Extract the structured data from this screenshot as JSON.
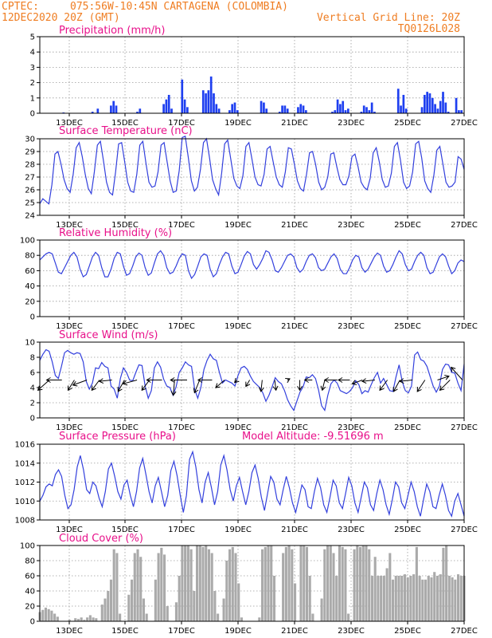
{
  "header": {
    "source": "CPTEC:",
    "location": "075:56W-10:45N  CARTAGENA (COLOMBIA)",
    "run": "12DEC2020 20Z (GMT)",
    "grid_note": "Vertical Grid Line: 20Z",
    "model_code": "TQ0126L028"
  },
  "colors": {
    "header": "#ef7d22",
    "title": "#e8108a",
    "line": "#3340dd",
    "precip": "#1e3ff0",
    "cloud": "#aaaaaa"
  },
  "x_axis": {
    "start": "2020-12-12 20Z",
    "end": "2020-12-26 20Z",
    "step_hours": 3,
    "tick_labels": [
      "13DEC",
      "15DEC",
      "17DEC",
      "19DEC",
      "21DEC",
      "23DEC",
      "25DEC",
      "27DEC"
    ]
  },
  "chart_data": [
    {
      "type": "bar",
      "title": "Precipitation (mm/h)",
      "ylim": [
        0,
        5
      ],
      "yticks": [
        "0",
        "1",
        "2",
        "3",
        "4",
        "5"
      ],
      "grid": true,
      "values": [
        0,
        0,
        0,
        0,
        0,
        0,
        0,
        0,
        0,
        0.05,
        0,
        0,
        0,
        0,
        0,
        0,
        0,
        0,
        0,
        0,
        0.1,
        0,
        0.3,
        0,
        0,
        0,
        0,
        0.5,
        0.8,
        0.5,
        0,
        0,
        0,
        0,
        0,
        0,
        0,
        0.1,
        0.3,
        0,
        0,
        0,
        0,
        0,
        0,
        0,
        0,
        0.6,
        0.9,
        1.2,
        0.3,
        0,
        0,
        0,
        2.2,
        0.9,
        0.4,
        0,
        0,
        0,
        0,
        0,
        1.5,
        1.3,
        1.5,
        2.4,
        1.3,
        0.6,
        0.3,
        0,
        0,
        0,
        0.2,
        0.6,
        0.7,
        0.2,
        0,
        0,
        0,
        0,
        0,
        0,
        0,
        0,
        0.8,
        0.7,
        0.3,
        0,
        0,
        0,
        0,
        0.1,
        0.5,
        0.5,
        0.3,
        0,
        0,
        0,
        0.4,
        0.6,
        0.5,
        0.2,
        0,
        0,
        0,
        0,
        0,
        0,
        0,
        0,
        0,
        0.1,
        0.2,
        0.9,
        0.6,
        0.8,
        0.2,
        0.3,
        0,
        0,
        0,
        0,
        0.1,
        0.5,
        0.4,
        0.2,
        0.7,
        0.1,
        0,
        0,
        0,
        0,
        0,
        0,
        0,
        0,
        1.6,
        0.5,
        1.2,
        0.3,
        0,
        0,
        0,
        0,
        0,
        0.4,
        1.2,
        1.4,
        1.3,
        1.0,
        0.6,
        0.3,
        0.8,
        1.4,
        0.7,
        0.1,
        0,
        0,
        1.0,
        0.2,
        0.2,
        0
      ]
    },
    {
      "type": "line",
      "title": "Surface Temperature (nC)",
      "ylim": [
        24,
        30
      ],
      "yticks": [
        "24",
        "25",
        "26",
        "27",
        "28",
        "29",
        "30"
      ],
      "grid": true,
      "series": [
        {
          "values": [
            24.9,
            25.3,
            25.1,
            24.9,
            26.4,
            28.8,
            29.0,
            28.0,
            26.8,
            26.1,
            25.8,
            27.2,
            29.3,
            29.7,
            28.6,
            27.2,
            26.1,
            25.7,
            27.4,
            29.5,
            29.8,
            28.3,
            26.6,
            25.8,
            25.6,
            27.4,
            29.6,
            29.7,
            28.2,
            26.6,
            25.9,
            25.8,
            27.2,
            29.5,
            29.8,
            28.1,
            26.6,
            26.2,
            26.3,
            27.4,
            29.5,
            29.7,
            28.2,
            26.7,
            25.8,
            25.9,
            27.5,
            30.1,
            30.2,
            28.5,
            26.7,
            25.9,
            26.2,
            27.6,
            29.7,
            30.0,
            28.5,
            26.8,
            26.1,
            25.6,
            27.3,
            29.6,
            29.9,
            28.4,
            26.9,
            26.3,
            26.1,
            27.1,
            29.4,
            29.7,
            28.4,
            27.0,
            26.4,
            26.3,
            27.2,
            29.2,
            29.4,
            28.2,
            27.0,
            26.4,
            26.2,
            27.4,
            29.3,
            29.2,
            28.0,
            26.7,
            26.1,
            25.9,
            27.2,
            28.9,
            29.0,
            28.0,
            26.6,
            26.0,
            26.2,
            27.0,
            28.8,
            28.9,
            27.8,
            26.8,
            26.4,
            26.4,
            27.1,
            28.6,
            28.8,
            27.8,
            26.6,
            26.2,
            26.0,
            26.9,
            28.9,
            29.3,
            28.2,
            26.8,
            26.2,
            26.3,
            27.3,
            29.4,
            29.7,
            28.3,
            26.6,
            26.1,
            26.3,
            27.4,
            29.6,
            29.8,
            28.5,
            26.7,
            26.1,
            25.8,
            27.1,
            29.1,
            29.4,
            28.0,
            26.6,
            26.2,
            26.3,
            26.6,
            28.6,
            28.4,
            27.6
          ]
        }
      ]
    },
    {
      "type": "line",
      "title": "Relative Humidity (%)",
      "ylim": [
        0,
        100
      ],
      "yticks": [
        "0",
        "20",
        "40",
        "60",
        "80",
        "100"
      ],
      "grid": true,
      "series": [
        {
          "values": [
            74,
            78,
            82,
            84,
            82,
            70,
            58,
            56,
            64,
            72,
            80,
            84,
            78,
            62,
            52,
            55,
            66,
            78,
            84,
            80,
            64,
            52,
            52,
            62,
            76,
            84,
            82,
            66,
            54,
            56,
            66,
            78,
            83,
            80,
            64,
            54,
            57,
            70,
            82,
            86,
            80,
            64,
            56,
            58,
            66,
            76,
            82,
            80,
            60,
            50,
            55,
            66,
            78,
            82,
            80,
            62,
            52,
            56,
            68,
            78,
            84,
            82,
            66,
            56,
            58,
            68,
            79,
            85,
            82,
            68,
            62,
            68,
            76,
            86,
            84,
            74,
            60,
            58,
            64,
            72,
            80,
            82,
            78,
            64,
            58,
            62,
            72,
            80,
            82,
            77,
            64,
            60,
            62,
            70,
            78,
            82,
            76,
            62,
            56,
            56,
            64,
            74,
            80,
            78,
            64,
            58,
            62,
            70,
            78,
            83,
            80,
            66,
            58,
            60,
            68,
            78,
            86,
            82,
            68,
            60,
            62,
            72,
            80,
            84,
            80,
            64,
            56,
            58,
            68,
            78,
            82,
            78,
            66,
            56,
            60,
            70,
            74,
            72
          ]
        }
      ]
    },
    {
      "type": "line",
      "title": "Surface Wind (m/s)",
      "ylim": [
        0,
        10
      ],
      "yticks": [
        "0",
        "2",
        "4",
        "6",
        "8",
        "10"
      ],
      "grid": true,
      "series": [
        {
          "values": [
            7.6,
            8.4,
            9.0,
            8.8,
            7.4,
            5.6,
            5.2,
            6.8,
            8.6,
            8.9,
            8.6,
            8.4,
            8.6,
            8.5,
            7.4,
            4.8,
            3.8,
            4.6,
            6.6,
            6.5,
            7.3,
            6.8,
            6.6,
            4.2,
            3.8,
            2.6,
            5.2,
            6.6,
            6.0,
            5.0,
            4.9,
            6.0,
            7.0,
            6.9,
            4.2,
            2.6,
            3.6,
            6.6,
            7.4,
            6.7,
            5.1,
            4.2,
            4.0,
            3.0,
            4.1,
            6.0,
            6.6,
            7.4,
            7.0,
            6.8,
            3.8,
            2.6,
            4.0,
            6.4,
            7.6,
            8.4,
            7.8,
            7.6,
            6.0,
            4.6,
            5.0,
            4.8,
            4.6,
            4.2,
            5.6,
            6.6,
            6.8,
            6.4,
            5.5,
            4.8,
            4.4,
            4.0,
            3.3,
            2.2,
            3.0,
            4.1,
            5.3,
            4.8,
            4.5,
            3.6,
            2.4,
            1.6,
            1.0,
            2.2,
            3.4,
            4.1,
            5.4,
            5.3,
            5.7,
            5.2,
            3.7,
            1.6,
            1.0,
            3.0,
            4.5,
            5.0,
            4.6,
            3.6,
            3.4,
            3.2,
            3.5,
            4.0,
            4.9,
            4.4,
            3.2,
            3.6,
            3.4,
            4.4,
            5.3,
            6.0,
            4.6,
            5.2,
            4.4,
            3.6,
            3.5,
            5.4,
            7.0,
            4.8,
            3.6,
            3.3,
            4.2,
            8.3,
            8.7,
            7.7,
            7.5,
            6.8,
            5.5,
            4.2,
            3.4,
            4.2,
            6.4,
            7.1,
            7.0,
            6.0,
            5.9,
            4.6,
            3.6,
            7.1
          ]
        }
      ],
      "wind_arrows": [
        {
          "dx": 9,
          "dy": 8
        },
        {
          "dx": 12,
          "dy": 0
        },
        {
          "dx": 5,
          "dy": 8
        },
        {
          "dx": 11,
          "dy": 4
        },
        {
          "dx": 6,
          "dy": 8
        },
        {
          "dx": 10,
          "dy": 1
        },
        {
          "dx": 5,
          "dy": 9
        },
        {
          "dx": 11,
          "dy": 3
        },
        {
          "dx": 6,
          "dy": 8
        },
        {
          "dx": 12,
          "dy": 0
        },
        {
          "dx": 1,
          "dy": 12
        },
        {
          "dx": 13,
          "dy": 0
        },
        {
          "dx": 4,
          "dy": 10
        },
        {
          "dx": 11,
          "dy": 0
        },
        {
          "dx": 7,
          "dy": 6
        },
        {
          "dx": 2,
          "dy": 2
        },
        {
          "dx": 3,
          "dy": 5
        },
        {
          "dx": 1,
          "dy": 9
        },
        {
          "dx": -1,
          "dy": 8
        },
        {
          "dx": -2,
          "dy": -1
        },
        {
          "dx": 0,
          "dy": 8
        },
        {
          "dx": 6,
          "dy": 0
        },
        {
          "dx": 2,
          "dy": 8
        },
        {
          "dx": 10,
          "dy": 0
        },
        {
          "dx": 9,
          "dy": 0
        },
        {
          "dx": 8,
          "dy": 3
        },
        {
          "dx": 10,
          "dy": 1
        },
        {
          "dx": 6,
          "dy": 8
        },
        {
          "dx": 5,
          "dy": 9
        },
        {
          "dx": 10,
          "dy": 1
        },
        {
          "dx": 6,
          "dy": 9
        },
        {
          "dx": -9,
          "dy": -3
        },
        {
          "dx": 8,
          "dy": 8
        },
        {
          "dx": 9,
          "dy": -10
        }
      ]
    },
    {
      "type": "line",
      "title": "Surface Pressure (hPa)",
      "annotation": "Model Altitude: -9.51696 m",
      "ylim": [
        1008,
        1016
      ],
      "yticks": [
        "1008",
        "1010",
        "1012",
        "1014",
        "1016"
      ],
      "grid": true,
      "series": [
        {
          "values": [
            1010.0,
            1010.6,
            1011.5,
            1011.8,
            1011.6,
            1012.8,
            1013.3,
            1012.6,
            1010.6,
            1009.2,
            1009.6,
            1011.2,
            1013.6,
            1014.8,
            1013.3,
            1011.2,
            1010.8,
            1012.0,
            1011.6,
            1010.3,
            1009.4,
            1011.0,
            1013.4,
            1014.0,
            1012.6,
            1011.0,
            1010.2,
            1011.7,
            1012.2,
            1010.6,
            1009.4,
            1011.0,
            1013.5,
            1014.5,
            1012.8,
            1011.0,
            1009.8,
            1011.6,
            1012.5,
            1011.0,
            1009.4,
            1010.6,
            1013.2,
            1014.2,
            1012.7,
            1010.6,
            1008.8,
            1010.6,
            1014.4,
            1015.2,
            1013.6,
            1011.2,
            1009.8,
            1012.0,
            1013.0,
            1011.4,
            1009.6,
            1011.0,
            1013.8,
            1014.8,
            1013.3,
            1011.2,
            1010.0,
            1011.6,
            1012.5,
            1011.0,
            1009.6,
            1011.0,
            1013.0,
            1013.8,
            1012.4,
            1010.4,
            1009.0,
            1010.8,
            1012.6,
            1012.0,
            1010.2,
            1009.6,
            1011.2,
            1012.6,
            1011.4,
            1009.8,
            1008.8,
            1010.2,
            1011.7,
            1011.2,
            1009.4,
            1009.2,
            1011.0,
            1012.4,
            1011.4,
            1009.6,
            1008.8,
            1010.4,
            1012.2,
            1011.6,
            1009.8,
            1009.2,
            1010.8,
            1012.5,
            1011.6,
            1009.8,
            1008.8,
            1010.4,
            1012.0,
            1011.4,
            1009.6,
            1009.0,
            1010.8,
            1012.2,
            1011.2,
            1009.6,
            1008.6,
            1010.2,
            1012.0,
            1011.5,
            1009.8,
            1009.2,
            1010.6,
            1012.0,
            1011.0,
            1009.4,
            1008.4,
            1010.2,
            1011.8,
            1011.0,
            1009.4,
            1009.2,
            1010.6,
            1011.8,
            1010.6,
            1009.0,
            1008.4,
            1010.0,
            1010.8,
            1009.6,
            1008.4
          ]
        }
      ]
    },
    {
      "type": "bar",
      "title": "Cloud Cover (%)",
      "ylim": [
        0,
        100
      ],
      "yticks": [
        "0",
        "20",
        "40",
        "60",
        "80",
        "100"
      ],
      "grid": true,
      "values": [
        12,
        15,
        18,
        16,
        14,
        10,
        6,
        0,
        0,
        0,
        2,
        0,
        4,
        3,
        5,
        2,
        5,
        8,
        5,
        4,
        0,
        22,
        30,
        40,
        55,
        95,
        90,
        10,
        0,
        0,
        35,
        55,
        90,
        95,
        85,
        30,
        10,
        0,
        0,
        55,
        90,
        97,
        88,
        20,
        0,
        0,
        25,
        60,
        100,
        100,
        100,
        95,
        40,
        100,
        100,
        98,
        100,
        95,
        90,
        40,
        10,
        0,
        30,
        80,
        95,
        98,
        90,
        50,
        5,
        0,
        0,
        0,
        0,
        0,
        5,
        95,
        98,
        100,
        100,
        60,
        0,
        0,
        90,
        98,
        100,
        95,
        50,
        0,
        100,
        100,
        98,
        60,
        10,
        0,
        0,
        30,
        95,
        100,
        100,
        90,
        60,
        100,
        98,
        95,
        10,
        0,
        95,
        100,
        98,
        100,
        100,
        95,
        60,
        85,
        60,
        60,
        60,
        70,
        90,
        55,
        60,
        60,
        60,
        62,
        58,
        60,
        62,
        98,
        60,
        55,
        55,
        60,
        58,
        65,
        60,
        62,
        97,
        100,
        60,
        58,
        55,
        62,
        60,
        60
      ]
    }
  ]
}
